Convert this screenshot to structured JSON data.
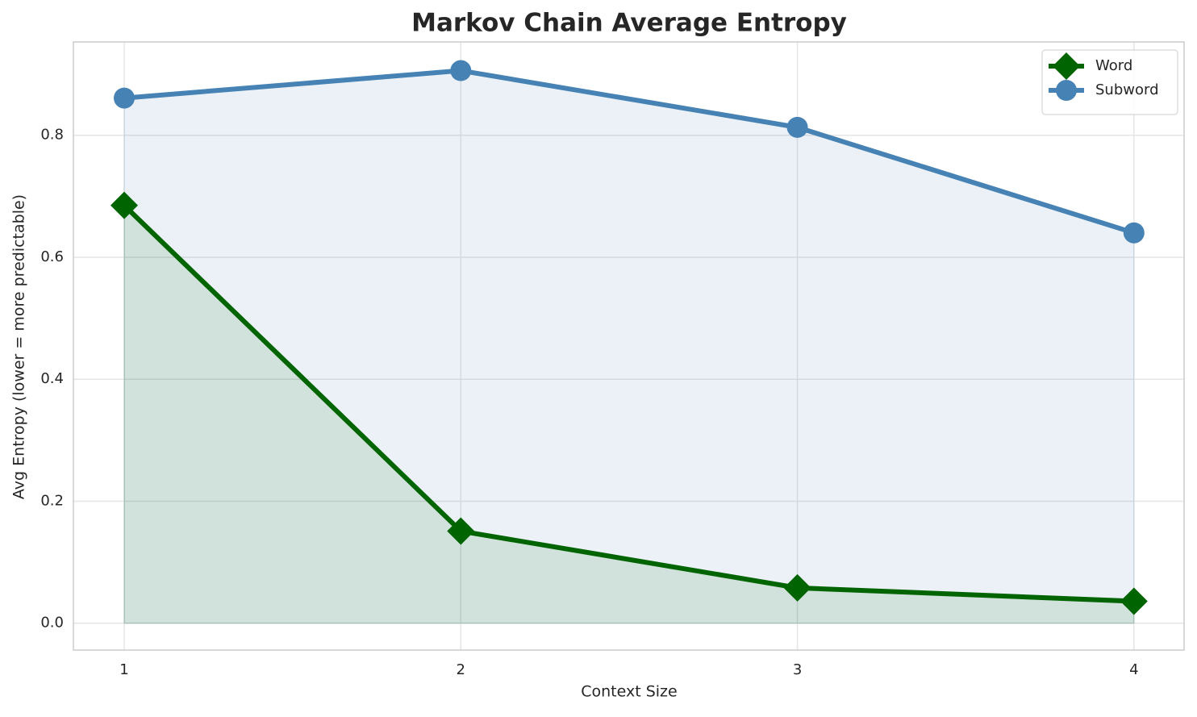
{
  "chart_data": {
    "type": "line",
    "title": "Markov Chain Average Entropy",
    "x_label": "Context Size",
    "y_label": "Avg Entropy (lower = more predictable)",
    "x": [
      1,
      2,
      3,
      4
    ],
    "series": [
      {
        "name": "Word",
        "color": "#006400",
        "marker": "diamond",
        "values": [
          0.685,
          0.151,
          0.058,
          0.036
        ]
      },
      {
        "name": "Subword",
        "color": "#4682b4",
        "marker": "circle",
        "values": [
          0.861,
          0.906,
          0.813,
          0.64
        ]
      }
    ],
    "fill_to_zero": true,
    "xlim": [
      0.849,
      4.149
    ],
    "xticks": [
      1,
      2,
      3,
      4
    ],
    "ylim": [
      -0.044,
      0.953
    ],
    "yticks": [
      {
        "value": 0,
        "label": "0.0"
      },
      {
        "value": 0.2,
        "label": "0.2"
      },
      {
        "value": 0.4,
        "label": "0.4"
      },
      {
        "value": 0.6,
        "label": "0.6"
      },
      {
        "value": 0.8,
        "label": "0.8"
      }
    ],
    "grid": true,
    "legend": "upper right"
  }
}
